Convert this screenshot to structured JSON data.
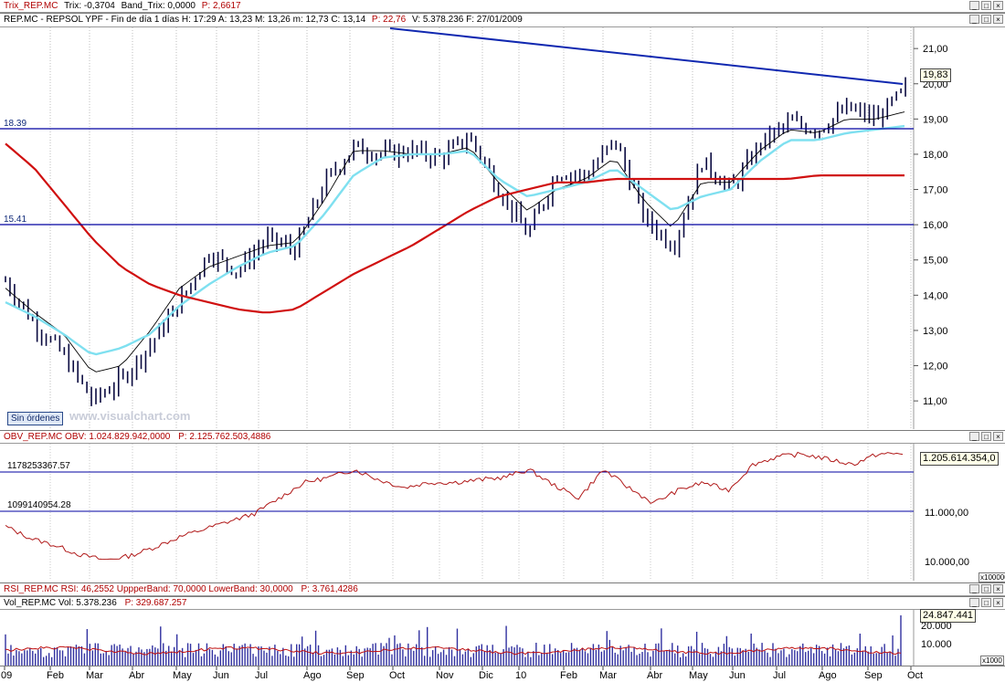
{
  "trix_bar": {
    "name": "Trix_REP.MC",
    "trix": "Trix: -0,3704",
    "band": "Band_Trix: 0,0000",
    "p": "P: 2,6617"
  },
  "price_pane": {
    "header": "REP.MC - REPSOL YPF - Fin de día 1 días  H: 17:29  A: 13,23  M: 13,26  m: 12,73  C: 13,14",
    "header_p": "P: 22,76",
    "header_v": "V: 5.378.236  F: 27/01/2009",
    "level_high": "18.39",
    "level_low": "15.41",
    "last_value": "19,83",
    "y_ticks": [
      "21,00",
      "20,00",
      "19,00",
      "18,00",
      "17,00",
      "16,00",
      "15,00",
      "14,00",
      "13,00",
      "12,00",
      "11,00"
    ],
    "orders_button": "Sin órdenes",
    "watermark": "www.visualchart.com"
  },
  "obv_pane": {
    "header": "OBV_REP.MC  OBV: 1.024.829.942,0000",
    "header_p": "P: 2.125.762.503,4886",
    "level_high": "1178253367.57",
    "level_low": "1099140954.28",
    "last_value": "1.205.614.354,0",
    "y_ticks": [
      "11.000,00",
      "10.000,00"
    ],
    "scale_note": "x100000"
  },
  "rsi_bar": {
    "header": "RSI_REP.MC  RSI: 46,2552  UppperBand: 70,0000  LowerBand: 30,0000",
    "header_p": "P: 3.761,4286"
  },
  "vol_pane": {
    "header": "Vol_REP.MC  Vol: 5.378.236",
    "header_p": "P: 329.687.257",
    "last_value": "24.847.441",
    "y_ticks": [
      "20.000",
      "10.000"
    ],
    "scale_note": "x1000"
  },
  "x_axis": {
    "labels": [
      "09",
      "Feb",
      "Mar",
      "Abr",
      "May",
      "Jun",
      "Jul",
      "Ago",
      "Sep",
      "Oct",
      "Nov",
      "Dic",
      "10",
      "Feb",
      "Mar",
      "Abr",
      "May",
      "Jun",
      "Jul",
      "Ago",
      "Sep",
      "Oct"
    ]
  },
  "colors": {
    "price_bars": "#0a0a40",
    "ma_short": "#000000",
    "ma_mid": "#7fe0f0",
    "ma_long": "#d01010",
    "levels": "#0000a0",
    "trendline": "#1028b0",
    "obv_line": "#b01818",
    "volume_bars": "#3030a0",
    "volume_ma": "#c01010"
  },
  "chart_data": [
    {
      "type": "line",
      "series": [
        {
          "values": [
            14.4,
            13.2,
            12.3,
            11.0,
            11.6,
            12.6,
            13.8,
            15.2,
            14.7,
            15.6,
            15.3,
            17.2,
            18.2,
            18.0,
            18.1,
            17.9,
            18.5,
            17.0,
            15.7,
            17.5,
            17.4,
            18.4,
            16.2,
            15.4,
            17.8,
            17.0,
            18.3,
            18.9,
            18.7,
            19.3,
            19.0,
            19.83
          ]
        },
        {
          "values": [
            14.2,
            13.5,
            12.9,
            11.8,
            12.0,
            13.0,
            14.2,
            14.8,
            15.1,
            15.4,
            15.5,
            16.7,
            18.1,
            18.1,
            18.0,
            18.0,
            18.2,
            17.2,
            16.4,
            17.0,
            17.3,
            17.9,
            16.7,
            15.9,
            17.2,
            17.2,
            18.1,
            18.7,
            18.6,
            19.0,
            19.0,
            19.2
          ]
        },
        {
          "values": [
            13.8,
            13.4,
            12.9,
            12.3,
            12.5,
            12.9,
            13.7,
            14.3,
            14.8,
            15.2,
            15.4,
            16.3,
            17.4,
            17.9,
            18.0,
            18.0,
            18.1,
            17.3,
            16.8,
            17.0,
            17.2,
            17.6,
            17.0,
            16.4,
            16.8,
            17.0,
            17.8,
            18.4,
            18.4,
            18.6,
            18.7,
            18.8
          ]
        },
        {
          "values": [
            18.3,
            17.6,
            16.6,
            15.6,
            14.8,
            14.3,
            14.0,
            13.8,
            13.6,
            13.5,
            13.6,
            14.1,
            14.6,
            15.0,
            15.4,
            15.9,
            16.4,
            16.8,
            17.0,
            17.2,
            17.2,
            17.3,
            17.3,
            17.3,
            17.3,
            17.3,
            17.3,
            17.3,
            17.4,
            17.4,
            17.4,
            17.4
          ]
        }
      ],
      "levels": [
        18.39,
        15.41
      ],
      "ylim": [
        10.2,
        21.6
      ]
    },
    {
      "type": "line",
      "series": [
        {
          "values": [
            10650,
            10420,
            10280,
            10100,
            10000,
            10080,
            10250,
            10450,
            10600,
            10750,
            10900,
            11200,
            11500,
            11600,
            11750,
            11550,
            11400,
            11500,
            11500,
            11550,
            11600,
            11750,
            11450,
            11200,
            11750,
            11400,
            11100,
            11350,
            11500,
            11350,
            11850,
            12000,
            12050,
            11950,
            11850,
            12050,
            12054
          ]
        }
      ],
      "levels": [
        11782.53,
        10991.41
      ],
      "ylim": [
        9600,
        12250
      ]
    }
  ]
}
